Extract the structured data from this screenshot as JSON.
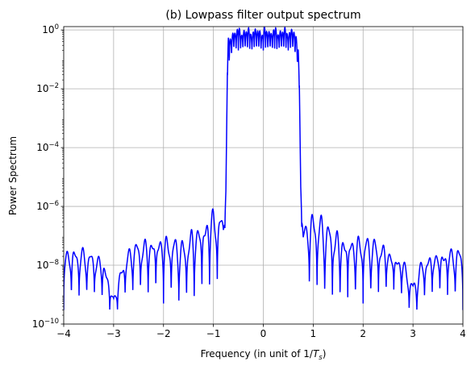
{
  "chart_data": {
    "type": "line",
    "title": "(b) Lowpass filter output spectrum",
    "xlabel_text": "Frequency (in unit of 1/",
    "xlabel_sym": "T",
    "xlabel_sub": "s",
    "xlabel_close": ")",
    "ylabel": "Power Spectrum",
    "xlim": [
      -4,
      4
    ],
    "ylim": [
      1e-10,
      1.3
    ],
    "yscale": "log",
    "grid": true,
    "line_color": "#0000ff",
    "x_ticks": [
      {
        "value": -4,
        "label": "−4"
      },
      {
        "value": -3,
        "label": "−3"
      },
      {
        "value": -2,
        "label": "−2"
      },
      {
        "value": -1,
        "label": "−1"
      },
      {
        "value": 0,
        "label": "0"
      },
      {
        "value": 1,
        "label": "1"
      },
      {
        "value": 2,
        "label": "2"
      },
      {
        "value": 3,
        "label": "3"
      },
      {
        "value": 4,
        "label": "4"
      }
    ],
    "y_ticks": [
      {
        "value": 1e-10,
        "base": "10",
        "exp": "−10"
      },
      {
        "value": 1e-08,
        "base": "10",
        "exp": "−8"
      },
      {
        "value": 1e-06,
        "base": "10",
        "exp": "−6"
      },
      {
        "value": 0.0001,
        "base": "10",
        "exp": "−4"
      },
      {
        "value": 0.01,
        "base": "10",
        "exp": "−2"
      },
      {
        "value": 1,
        "base": "10",
        "exp": "0"
      }
    ],
    "series": [
      {
        "name": "",
        "x": [
          -4.0,
          -3.8,
          -3.6,
          -3.4,
          -3.2,
          -3.0,
          -2.8,
          -2.6,
          -2.4,
          -2.2,
          -2.0,
          -1.8,
          -1.6,
          -1.4,
          -1.2,
          -1.0,
          -0.9,
          -0.8,
          -0.75,
          -0.72,
          -0.7,
          -0.6,
          -0.4,
          -0.2,
          0.0,
          0.2,
          0.4,
          0.6,
          0.7,
          0.72,
          0.75,
          0.8,
          0.9,
          1.0,
          1.2,
          1.4,
          1.6,
          1.8,
          2.0,
          2.2,
          2.4,
          2.6,
          2.8,
          3.0,
          3.2,
          3.4,
          3.6,
          3.8,
          4.0
        ],
        "upper": [
          5e-08,
          5e-08,
          4e-08,
          3e-08,
          2e-08,
          1e-09,
          2e-08,
          7e-08,
          9e-08,
          1.2e-07,
          1.5e-07,
          1.2e-07,
          8e-08,
          3e-07,
          5e-07,
          1.5e-06,
          8e-07,
          6e-07,
          1e-05,
          0.05,
          0.6,
          1.3,
          1.3,
          1.3,
          1.3,
          1.3,
          1.3,
          1.3,
          0.6,
          0.05,
          1e-05,
          3e-07,
          5e-07,
          1e-06,
          5e-07,
          3e-07,
          1.5e-07,
          1.3e-07,
          1.2e-07,
          1e-07,
          7e-08,
          3e-08,
          2e-08,
          3e-09,
          2e-08,
          3e-08,
          4e-08,
          5e-08,
          5e-08
        ],
        "lower": [
          3e-10,
          5e-10,
          6e-10,
          7e-10,
          4e-10,
          1e-10,
          5e-10,
          8e-10,
          7e-10,
          6e-10,
          5e-10,
          4e-10,
          3e-10,
          3e-10,
          5e-10,
          6e-10,
          1e-09,
          4e-09,
          8e-07,
          0.003,
          0.05,
          0.2,
          0.2,
          0.2,
          0.2,
          0.2,
          0.2,
          0.2,
          0.05,
          0.003,
          8e-07,
          4e-09,
          1e-09,
          6e-10,
          5e-10,
          3e-10,
          3e-10,
          4e-10,
          5e-10,
          6e-10,
          7e-10,
          8e-10,
          5e-10,
          1e-10,
          4e-10,
          7e-10,
          6e-10,
          5e-10,
          3e-10
        ]
      }
    ]
  }
}
